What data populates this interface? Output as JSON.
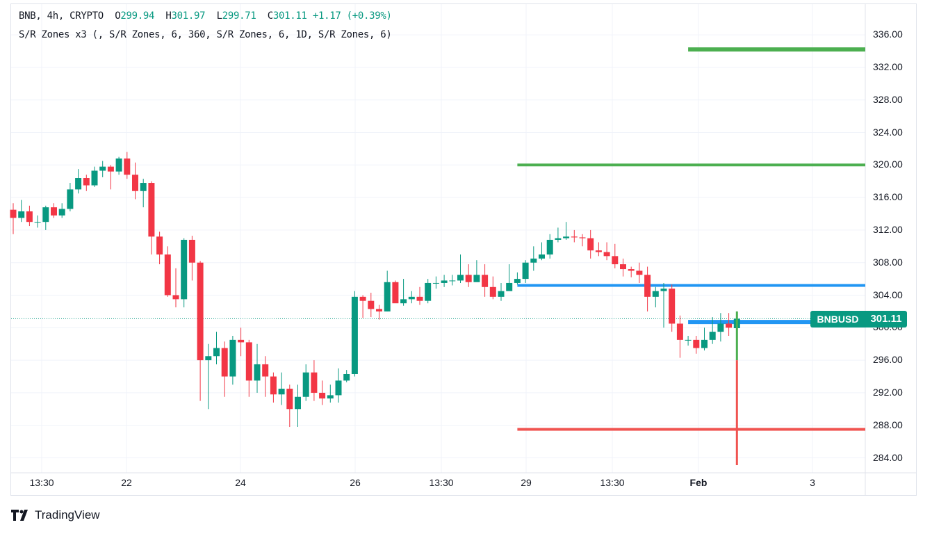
{
  "legend": {
    "symbol": "BNB, 4h, CRYPTO",
    "o_label": "O",
    "open": "299.94",
    "h_label": "H",
    "high": "301.97",
    "l_label": "L",
    "low": "299.71",
    "c_label": "C",
    "close": "301.11",
    "change": "+1.17 (+0.39%)",
    "indicator": "S/R Zones x3 (, S/R Zones, 6, 360, S/R Zones, 6, 1D, S/R Zones, 6)"
  },
  "price_tag": {
    "symbol": "BNBUSD",
    "price": "301.11"
  },
  "brand": {
    "name": "TradingView"
  },
  "colors": {
    "up": "#089981",
    "down": "#f23645",
    "green_zone": "#4caf50",
    "blue_zone": "#2196f3",
    "red_zone": "#f05350"
  },
  "chart_data": {
    "type": "candlestick",
    "y_ticks": [
      "284.00",
      "288.00",
      "292.00",
      "296.00",
      "300.00",
      "304.00",
      "308.00",
      "312.00",
      "316.00",
      "320.00",
      "324.00",
      "328.00",
      "332.00",
      "336.00"
    ],
    "ylim": [
      283,
      338
    ],
    "x_ticks": [
      "13:30",
      "22",
      "24",
      "26",
      "13:30",
      "29",
      "13:30",
      "Feb",
      "3"
    ],
    "last_price": 301.11,
    "candles": [
      [
        314.5,
        313.5,
        315.3,
        311.5
      ],
      [
        313.5,
        314.3,
        315.7,
        313.0
      ],
      [
        314.3,
        313.0,
        315.0,
        312.5
      ],
      [
        313.0,
        313.0,
        313.8,
        312.3
      ],
      [
        313.0,
        314.8,
        315.0,
        312.0
      ],
      [
        314.8,
        313.8,
        315.3,
        313.5
      ],
      [
        313.8,
        314.6,
        315.3,
        313.5
      ],
      [
        314.6,
        317.0,
        317.8,
        314.3
      ],
      [
        317.0,
        318.4,
        319.5,
        316.5
      ],
      [
        318.4,
        317.5,
        318.8,
        316.8
      ],
      [
        317.5,
        319.3,
        319.8,
        317.3
      ],
      [
        319.3,
        319.8,
        320.5,
        318.5
      ],
      [
        319.8,
        319.2,
        320.0,
        317.0
      ],
      [
        319.2,
        320.8,
        321.0,
        318.8
      ],
      [
        320.8,
        318.8,
        321.6,
        318.3
      ],
      [
        318.8,
        316.8,
        320.3,
        315.8
      ],
      [
        316.8,
        317.8,
        318.3,
        314.8
      ],
      [
        317.8,
        311.2,
        318.0,
        309.0
      ],
      [
        311.2,
        309.0,
        311.8,
        307.8
      ],
      [
        309.0,
        304.0,
        310.0,
        303.8
      ],
      [
        304.0,
        303.5,
        307.3,
        302.5
      ],
      [
        303.5,
        310.8,
        311.0,
        302.5
      ],
      [
        310.8,
        308.0,
        311.3,
        305.8
      ],
      [
        308.0,
        296.0,
        308.2,
        291.0
      ],
      [
        296.0,
        296.5,
        298.0,
        290.0
      ],
      [
        296.5,
        297.5,
        299.5,
        295.5
      ],
      [
        297.5,
        294.0,
        298.3,
        291.5
      ],
      [
        294.0,
        298.5,
        299.0,
        293.0
      ],
      [
        298.5,
        298.2,
        300.0,
        296.5
      ],
      [
        298.2,
        293.5,
        298.5,
        291.5
      ],
      [
        293.5,
        295.5,
        298.0,
        292.0
      ],
      [
        295.5,
        294.0,
        296.5,
        291.5
      ],
      [
        294.0,
        291.8,
        294.5,
        290.8
      ],
      [
        291.8,
        292.5,
        294.5,
        290.5
      ],
      [
        292.5,
        290.0,
        293.0,
        287.8
      ],
      [
        290.0,
        291.5,
        293.0,
        287.8
      ],
      [
        291.5,
        294.5,
        295.5,
        291.0
      ],
      [
        294.5,
        292.0,
        296.0,
        291.0
      ],
      [
        292.0,
        291.3,
        293.5,
        290.5
      ],
      [
        291.3,
        291.7,
        293.0,
        290.8
      ],
      [
        291.7,
        293.5,
        295.0,
        290.8
      ],
      [
        293.5,
        294.3,
        294.8,
        293.3
      ],
      [
        294.3,
        303.8,
        304.5,
        294.0
      ],
      [
        303.8,
        303.3,
        304.0,
        301.2
      ],
      [
        303.3,
        302.3,
        304.3,
        301.3
      ],
      [
        302.3,
        302.0,
        302.8,
        301.0
      ],
      [
        302.0,
        305.6,
        307.0,
        302.0
      ],
      [
        305.6,
        303.0,
        305.8,
        303.2
      ],
      [
        303.0,
        303.5,
        306.0,
        302.7
      ],
      [
        303.5,
        303.8,
        304.5,
        303.0
      ],
      [
        303.8,
        303.3,
        305.0,
        302.8
      ],
      [
        303.3,
        305.5,
        306.0,
        303.0
      ],
      [
        305.5,
        305.5,
        306.3,
        304.8
      ],
      [
        305.5,
        305.8,
        306.5,
        305.0
      ],
      [
        305.8,
        305.8,
        306.5,
        305.2
      ],
      [
        305.8,
        306.5,
        309.0,
        305.5
      ],
      [
        306.5,
        305.6,
        307.8,
        305.0
      ],
      [
        305.6,
        306.5,
        308.3,
        306.0
      ],
      [
        306.5,
        305.0,
        307.8,
        303.8
      ],
      [
        305.0,
        303.8,
        306.3,
        303.5
      ],
      [
        303.8,
        304.5,
        305.5,
        303.3
      ],
      [
        304.5,
        305.5,
        307.8,
        305.0
      ],
      [
        305.5,
        306.0,
        306.8,
        305.3
      ],
      [
        306.0,
        308.0,
        308.3,
        305.5
      ],
      [
        308.0,
        308.5,
        310.0,
        307.0
      ],
      [
        308.5,
        309.0,
        310.5,
        308.3
      ],
      [
        309.0,
        310.8,
        311.5,
        308.5
      ],
      [
        310.8,
        311.0,
        312.3,
        310.5
      ],
      [
        311.0,
        311.2,
        313.0,
        310.8
      ],
      [
        311.2,
        311.1,
        312.0,
        310.5
      ],
      [
        311.1,
        311.0,
        311.5,
        310.0
      ],
      [
        311.0,
        309.5,
        312.0,
        308.5
      ],
      [
        309.5,
        309.3,
        310.5,
        308.8
      ],
      [
        309.3,
        308.8,
        310.5,
        308.3
      ],
      [
        308.8,
        307.8,
        310.3,
        307.3
      ],
      [
        307.8,
        307.2,
        308.5,
        306.3
      ],
      [
        307.2,
        307.0,
        307.5,
        306.2
      ],
      [
        307.0,
        306.5,
        308.0,
        305.5
      ],
      [
        306.5,
        303.8,
        307.5,
        302.0
      ],
      [
        303.8,
        304.5,
        305.0,
        302.5
      ],
      [
        304.5,
        304.8,
        305.5,
        300.0
      ],
      [
        304.8,
        300.5,
        305.3,
        299.5
      ],
      [
        300.5,
        298.5,
        301.5,
        296.3
      ],
      [
        298.5,
        298.5,
        299.0,
        297.8
      ],
      [
        298.5,
        297.5,
        299.0,
        296.8
      ],
      [
        297.5,
        298.5,
        300.0,
        297.2
      ],
      [
        298.5,
        299.5,
        301.3,
        298.0
      ],
      [
        299.5,
        300.5,
        301.8,
        298.3
      ],
      [
        300.5,
        300.0,
        301.8,
        299.0
      ],
      [
        299.94,
        301.11,
        301.97,
        299.71
      ]
    ],
    "zones": [
      {
        "price": 334.2,
        "color": "green",
        "from_candle": 83
      },
      {
        "price": 320.0,
        "color": "green",
        "from_candle": 62
      },
      {
        "price": 305.2,
        "color": "blue",
        "from_candle": 62
      },
      {
        "price": 300.7,
        "color": "blue",
        "from_candle": 83
      },
      {
        "price": 287.5,
        "color": "red",
        "from_candle": 62
      }
    ]
  }
}
